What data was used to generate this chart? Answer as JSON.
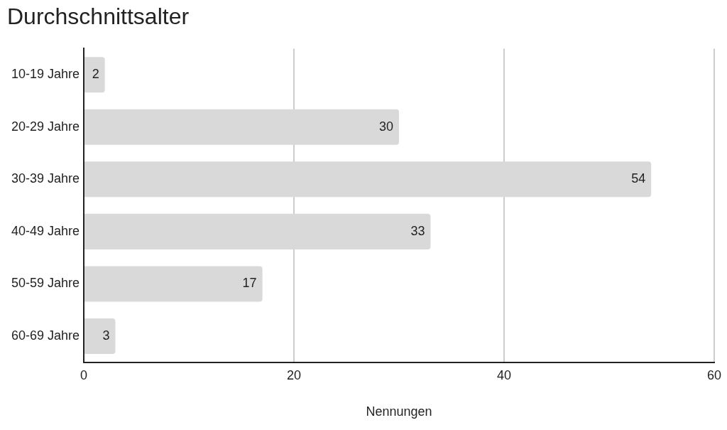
{
  "chart_data": {
    "type": "bar",
    "orientation": "horizontal",
    "title": "Durchschnittsalter",
    "xlabel": "Nennungen",
    "categories": [
      "10-19 Jahre",
      "20-29 Jahre",
      "30-39 Jahre",
      "40-49 Jahre",
      "50-59 Jahre",
      "60-69 Jahre"
    ],
    "values": [
      2,
      30,
      54,
      33,
      17,
      3
    ],
    "color": "#d9d9d9",
    "xlim": [
      0,
      60
    ],
    "xticks": [
      0,
      20,
      40,
      60
    ],
    "grid": "x",
    "data_labels": true,
    "legend": false
  }
}
